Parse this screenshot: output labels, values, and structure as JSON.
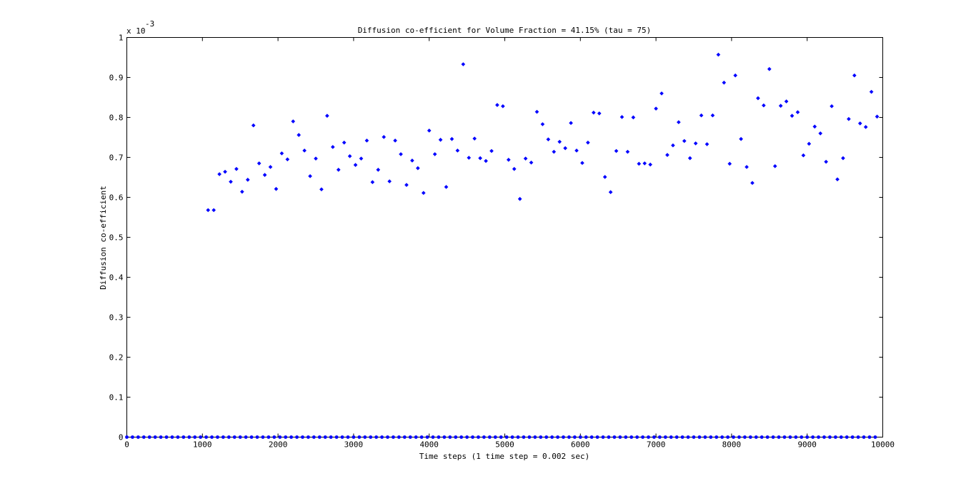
{
  "chart_data": {
    "type": "scatter",
    "title": "Diffusion co-efficient for Volume Fraction = 41.15% (tau = 75)",
    "xlabel": "Time steps (1 time step = 0.002 sec)",
    "ylabel": "Diffusion co-efficient",
    "y_exponent_label": "x 10",
    "y_exponent_power": "-3",
    "xlim": [
      0,
      10000
    ],
    "ylim": [
      0,
      0.001
    ],
    "x_ticks": [
      0,
      1000,
      2000,
      3000,
      4000,
      5000,
      6000,
      7000,
      8000,
      9000,
      10000
    ],
    "y_ticks": [
      0,
      0.1,
      0.2,
      0.3,
      0.4,
      0.5,
      0.6,
      0.7,
      0.8,
      0.9,
      1
    ],
    "y_tick_labels": [
      "0",
      "0.1",
      "0.2",
      "0.3",
      "0.4",
      "0.5",
      "0.6",
      "0.7",
      "0.8",
      "0.9",
      "1"
    ],
    "marker_color": "#0000ff",
    "grid": false,
    "baseline": {
      "x_start": 0,
      "x_end": 9950,
      "y": 0,
      "step": 75
    },
    "points": [
      [
        1075,
        0.568
      ],
      [
        1150,
        0.568
      ],
      [
        1225,
        0.658
      ],
      [
        1300,
        0.664
      ],
      [
        1375,
        0.639
      ],
      [
        1450,
        0.671
      ],
      [
        1525,
        0.614
      ],
      [
        1600,
        0.644
      ],
      [
        1675,
        0.78
      ],
      [
        1750,
        0.685
      ],
      [
        1825,
        0.656
      ],
      [
        1900,
        0.676
      ],
      [
        1975,
        0.621
      ],
      [
        2050,
        0.71
      ],
      [
        2125,
        0.695
      ],
      [
        2200,
        0.79
      ],
      [
        2275,
        0.756
      ],
      [
        2350,
        0.717
      ],
      [
        2425,
        0.653
      ],
      [
        2500,
        0.697
      ],
      [
        2575,
        0.62
      ],
      [
        2650,
        0.804
      ],
      [
        2725,
        0.726
      ],
      [
        2800,
        0.669
      ],
      [
        2875,
        0.737
      ],
      [
        2950,
        0.703
      ],
      [
        3025,
        0.681
      ],
      [
        3100,
        0.697
      ],
      [
        3175,
        0.742
      ],
      [
        3250,
        0.638
      ],
      [
        3325,
        0.669
      ],
      [
        3400,
        0.751
      ],
      [
        3475,
        0.64
      ],
      [
        3550,
        0.742
      ],
      [
        3625,
        0.708
      ],
      [
        3700,
        0.631
      ],
      [
        3775,
        0.692
      ],
      [
        3850,
        0.673
      ],
      [
        3925,
        0.611
      ],
      [
        4000,
        0.767
      ],
      [
        4075,
        0.708
      ],
      [
        4150,
        0.744
      ],
      [
        4225,
        0.626
      ],
      [
        4300,
        0.746
      ],
      [
        4375,
        0.717
      ],
      [
        4450,
        0.933
      ],
      [
        4525,
        0.699
      ],
      [
        4600,
        0.747
      ],
      [
        4675,
        0.698
      ],
      [
        4750,
        0.691
      ],
      [
        4825,
        0.716
      ],
      [
        4900,
        0.831
      ],
      [
        4975,
        0.828
      ],
      [
        5050,
        0.694
      ],
      [
        5125,
        0.671
      ],
      [
        5200,
        0.596
      ],
      [
        5275,
        0.697
      ],
      [
        5350,
        0.687
      ],
      [
        5425,
        0.814
      ],
      [
        5500,
        0.783
      ],
      [
        5575,
        0.745
      ],
      [
        5650,
        0.714
      ],
      [
        5725,
        0.739
      ],
      [
        5800,
        0.723
      ],
      [
        5875,
        0.786
      ],
      [
        5950,
        0.717
      ],
      [
        6025,
        0.686
      ],
      [
        6100,
        0.737
      ],
      [
        6175,
        0.812
      ],
      [
        6250,
        0.81
      ],
      [
        6325,
        0.651
      ],
      [
        6400,
        0.613
      ],
      [
        6475,
        0.716
      ],
      [
        6550,
        0.801
      ],
      [
        6625,
        0.714
      ],
      [
        6700,
        0.8
      ],
      [
        6775,
        0.684
      ],
      [
        6850,
        0.685
      ],
      [
        6925,
        0.682
      ],
      [
        7000,
        0.822
      ],
      [
        7075,
        0.86
      ],
      [
        7150,
        0.706
      ],
      [
        7225,
        0.73
      ],
      [
        7300,
        0.788
      ],
      [
        7375,
        0.741
      ],
      [
        7450,
        0.698
      ],
      [
        7525,
        0.735
      ],
      [
        7600,
        0.805
      ],
      [
        7675,
        0.733
      ],
      [
        7750,
        0.805
      ],
      [
        7825,
        0.957
      ],
      [
        7900,
        0.887
      ],
      [
        7975,
        0.684
      ],
      [
        8050,
        0.905
      ],
      [
        8125,
        0.746
      ],
      [
        8200,
        0.676
      ],
      [
        8275,
        0.636
      ],
      [
        8350,
        0.848
      ],
      [
        8425,
        0.83
      ],
      [
        8500,
        0.921
      ],
      [
        8575,
        0.678
      ],
      [
        8650,
        0.829
      ],
      [
        8725,
        0.84
      ],
      [
        8800,
        0.804
      ],
      [
        8875,
        0.813
      ],
      [
        8950,
        0.705
      ],
      [
        9025,
        0.734
      ],
      [
        9100,
        0.777
      ],
      [
        9175,
        0.76
      ],
      [
        9250,
        0.689
      ],
      [
        9325,
        0.828
      ],
      [
        9400,
        0.645
      ],
      [
        9475,
        0.698
      ],
      [
        9550,
        0.796
      ],
      [
        9625,
        0.905
      ],
      [
        9700,
        0.785
      ],
      [
        9775,
        0.776
      ],
      [
        9850,
        0.864
      ],
      [
        9925,
        0.802
      ]
    ],
    "points_scale_note_units": "x10^-3"
  }
}
